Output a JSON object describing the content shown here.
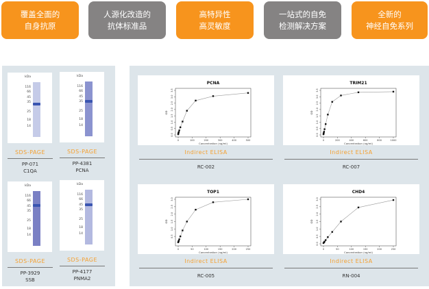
{
  "features": [
    {
      "line1": "覆盖全面的",
      "line2": "自身抗原",
      "color": "#f7941d"
    },
    {
      "line1": "人源化改造的",
      "line2": "抗体标准品",
      "color": "#858383"
    },
    {
      "line1": "高特异性",
      "line2": "高灵敏度",
      "color": "#f7941d"
    },
    {
      "line1": "一站式的自免",
      "line2": "检测解决方案",
      "color": "#858383"
    },
    {
      "line1": "全新的",
      "line2": "神经自免系列",
      "color": "#f7941d"
    }
  ],
  "gels": [
    {
      "label": "SDS-PAGE",
      "code": "PP-071",
      "name": "C1QA",
      "kda_unit": "kDa",
      "markers": [
        "116",
        "66",
        "45",
        "35",
        "25",
        "18",
        "14"
      ],
      "lane_color": "#c5cbe8",
      "band_kda": "31"
    },
    {
      "label": "SDS-PAGE",
      "code": "PP-4381",
      "name": "PCNA",
      "kda_unit": "kDa",
      "markers": [
        "116",
        "66",
        "45",
        "35",
        "25",
        "18",
        "14"
      ],
      "lane_color": "#8b93cf",
      "band_kda": "35"
    },
    {
      "label": "SDS-PAGE",
      "code": "PP-3929",
      "name": "SSB",
      "kda_unit": "kDa",
      "markers": [
        "116",
        "66",
        "45",
        "35",
        "25",
        "18",
        "14"
      ],
      "lane_color": "#7a80c4",
      "band_kda": "47"
    },
    {
      "label": "SDS-PAGE",
      "code": "PP-4177",
      "name": "PNMA2",
      "kda_unit": "kDa",
      "markers": [
        "116",
        "66",
        "45",
        "35",
        "25",
        "18",
        "14"
      ],
      "lane_color": "#b3b9e0",
      "band_kda": "45"
    }
  ],
  "elisa": [
    {
      "label": "Indirect ELISA",
      "code": "RC-002"
    },
    {
      "label": "Indirect ELISA",
      "code": "RC-007"
    },
    {
      "label": "Indirect ELISA",
      "code": "RC-005"
    },
    {
      "label": "Indirect ELISA",
      "code": "RN-004"
    }
  ],
  "chart_data": [
    {
      "type": "scatter",
      "title": "PCNA",
      "xlabel": "Concentration (ng/ml)",
      "ylabel": "OD",
      "xlim": [
        0,
        500
      ],
      "ylim": [
        0,
        3.5
      ],
      "xticks": [
        0,
        100,
        200,
        300,
        400,
        500
      ],
      "yticks": [
        0.0,
        0.5,
        1.0,
        1.5,
        2.0,
        2.5,
        3.0,
        3.5
      ],
      "x": [
        0,
        0.98,
        1.95,
        3.9,
        7.8,
        15.6,
        31.25,
        62.5,
        125,
        250,
        500
      ],
      "y": [
        0.05,
        0.1,
        0.15,
        0.22,
        0.35,
        0.6,
        1.05,
        1.9,
        2.7,
        3.05,
        3.3
      ]
    },
    {
      "type": "scatter",
      "title": "TRIM21",
      "xlabel": "Concentration (ng/ml)",
      "ylabel": "OD",
      "xlim": [
        0,
        1000
      ],
      "ylim": [
        0,
        3.5
      ],
      "xticks": [
        0,
        200,
        400,
        600,
        800,
        1000
      ],
      "yticks": [
        0.0,
        0.5,
        1.0,
        1.5,
        2.0,
        2.5,
        3.0,
        3.5
      ],
      "x": [
        0,
        1.95,
        3.9,
        7.8,
        15.6,
        31.25,
        62.5,
        125,
        250,
        500,
        1000
      ],
      "y": [
        0.05,
        0.1,
        0.15,
        0.25,
        0.45,
        0.85,
        1.6,
        2.6,
        3.1,
        3.35,
        3.4
      ]
    },
    {
      "type": "scatter",
      "title": "TOP1",
      "xlabel": "Concentration (ng/ml)",
      "ylabel": "OD",
      "xlim": [
        0,
        250
      ],
      "ylim": [
        0,
        3.0
      ],
      "xticks": [
        0,
        50,
        100,
        150,
        200,
        250
      ],
      "yticks": [
        0.5,
        1.0,
        1.5,
        2.0,
        2.5,
        3.0
      ],
      "x": [
        0,
        0.98,
        1.95,
        3.9,
        7.8,
        15.6,
        31.25,
        62.5,
        125,
        250
      ],
      "y": [
        0.1,
        0.15,
        0.2,
        0.3,
        0.5,
        0.9,
        1.5,
        2.3,
        2.8,
        3.0
      ]
    },
    {
      "type": "scatter",
      "title": "CHD4",
      "xlabel": "Concentration (ng/ml)",
      "ylabel": "OD",
      "xlim": [
        0,
        250
      ],
      "ylim": [
        0,
        3.0
      ],
      "xticks": [
        0,
        50,
        100,
        150,
        200,
        250
      ],
      "yticks": [
        0.0,
        0.5,
        1.0,
        1.5,
        2.0,
        2.5,
        3.0
      ],
      "x": [
        0,
        1.95,
        3.9,
        7.8,
        15.6,
        31.25,
        62.5,
        125,
        250
      ],
      "y": [
        0.05,
        0.1,
        0.15,
        0.25,
        0.45,
        0.8,
        1.5,
        2.45,
        2.95
      ]
    }
  ]
}
